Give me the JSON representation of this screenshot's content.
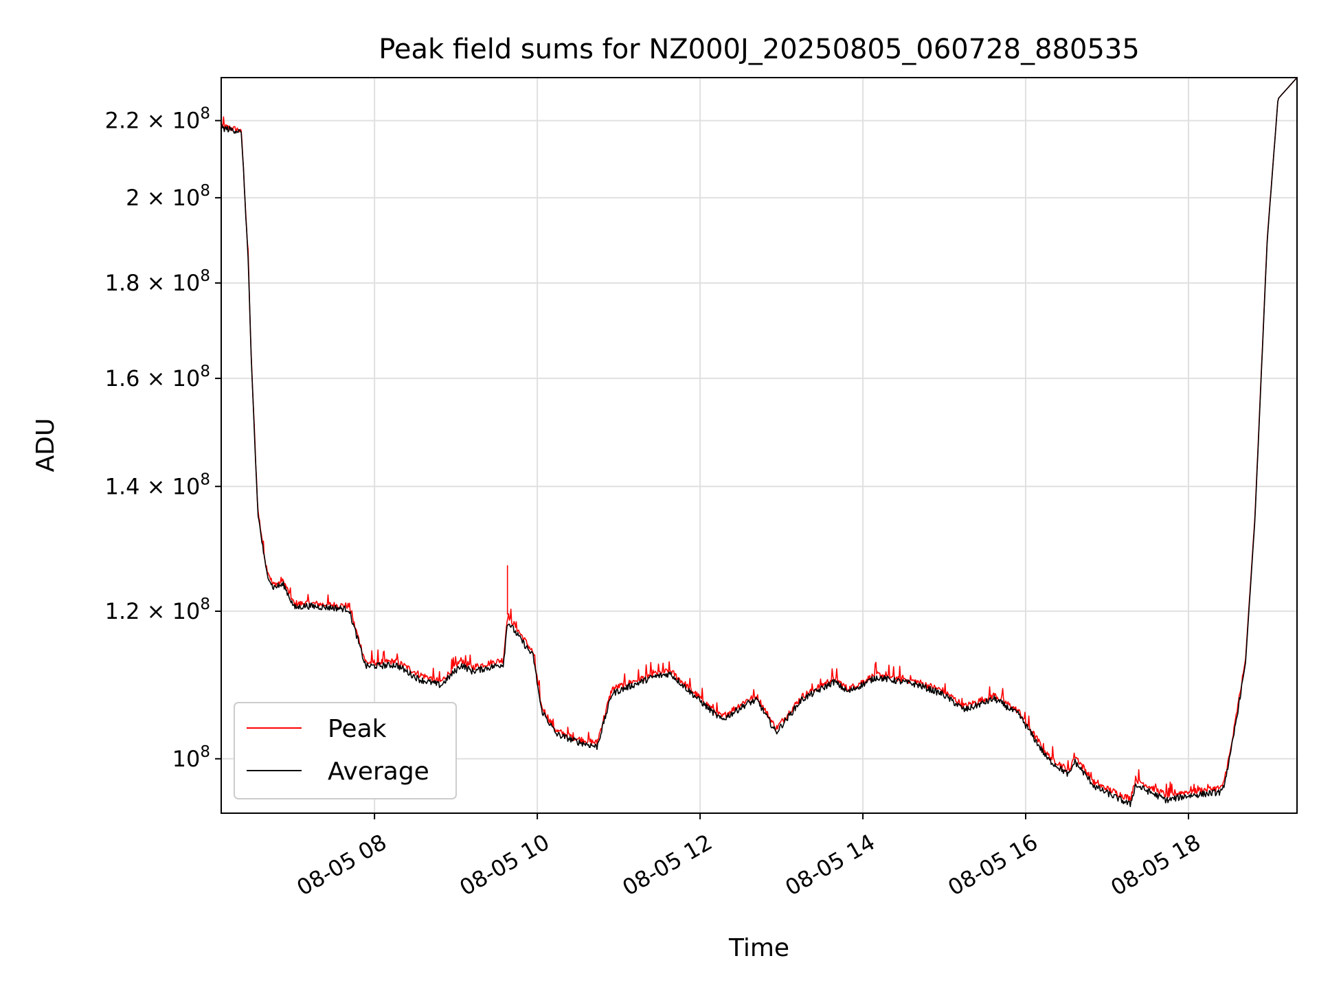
{
  "chart_data": {
    "type": "line",
    "title": "Peak field sums for NZ000J_20250805_060728_880535",
    "xlabel": "Time",
    "ylabel": "ADU",
    "yscale": "log",
    "grid": true,
    "legend_position": "lower-left",
    "xlim": [
      "2025-08-05 06:07",
      "2025-08-05 19:20"
    ],
    "ylim": [
      93500000,
      232000000
    ],
    "x_ticks": [
      "08-05 08",
      "08-05 10",
      "08-05 12",
      "08-05 14",
      "08-05 16",
      "08-05 18"
    ],
    "y_ticks": [
      {
        "value": 100000000,
        "mantissa": "",
        "exp": "8"
      },
      {
        "value": 120000000,
        "mantissa": "1.2",
        "exp": "8"
      },
      {
        "value": 140000000,
        "mantissa": "1.4",
        "exp": "8"
      },
      {
        "value": 160000000,
        "mantissa": "1.6",
        "exp": "8"
      },
      {
        "value": 180000000,
        "mantissa": "1.8",
        "exp": "8"
      },
      {
        "value": 200000000,
        "mantissa": "2",
        "exp": "8"
      },
      {
        "value": 220000000,
        "mantissa": "2.2",
        "exp": "8"
      }
    ],
    "x": [
      "2025-08-05 06:07",
      "2025-08-05 06:20",
      "2025-08-05 06:22",
      "2025-08-05 06:27",
      "2025-08-05 06:29",
      "2025-08-05 06:34",
      "2025-08-05 06:40",
      "2025-08-05 06:45",
      "2025-08-05 06:53",
      "2025-08-05 07:01",
      "2025-08-05 07:09",
      "2025-08-05 07:24",
      "2025-08-05 07:41",
      "2025-08-05 07:53",
      "2025-08-05 07:54",
      "2025-08-05 08:16",
      "2025-08-05 08:33",
      "2025-08-05 08:49",
      "2025-08-05 09:04",
      "2025-08-05 09:12",
      "2025-08-05 09:35",
      "2025-08-05 09:38",
      "2025-08-05 09:57",
      "2025-08-05 10:03",
      "2025-08-05 10:14",
      "2025-08-05 10:30",
      "2025-08-05 10:44",
      "2025-08-05 10:55",
      "2025-08-05 11:25",
      "2025-08-05 11:38",
      "2025-08-05 12:05",
      "2025-08-05 12:16",
      "2025-08-05 12:35",
      "2025-08-05 12:42",
      "2025-08-05 12:56",
      "2025-08-05 13:15",
      "2025-08-05 13:39",
      "2025-08-05 13:49",
      "2025-08-05 14:10",
      "2025-08-05 14:40",
      "2025-08-05 14:59",
      "2025-08-05 15:15",
      "2025-08-05 15:37",
      "2025-08-05 15:55",
      "2025-08-05 16:16",
      "2025-08-05 16:32",
      "2025-08-05 16:36",
      "2025-08-05 16:51",
      "2025-08-05 17:17",
      "2025-08-05 17:21",
      "2025-08-05 17:44",
      "2025-08-05 17:58",
      "2025-08-05 18:25",
      "2025-08-05 18:31",
      "2025-08-05 18:42",
      "2025-08-05 18:49",
      "2025-08-05 18:58",
      "2025-08-05 19:06",
      "2025-08-05 19:20"
    ],
    "series": [
      {
        "name": "Peak",
        "color": "#ff0000",
        "values": [
          218500000,
          217500000,
          216500000,
          185000000,
          165000000,
          136000000,
          127000000,
          124000000,
          124500000,
          121000000,
          121200000,
          121000000,
          120800000,
          113000000,
          112600000,
          112800000,
          111000000,
          110000000,
          113000000,
          112000000,
          113000000,
          119500000,
          114000000,
          106700000,
          103500000,
          102500000,
          102000000,
          109000000,
          111000000,
          111500000,
          107000000,
          105300000,
          107600000,
          108000000,
          103800000,
          108000000,
          110500000,
          109000000,
          111000000,
          110000000,
          108800000,
          106700000,
          108200000,
          106000000,
          100500000,
          98500000,
          100500000,
          97000000,
          95200000,
          97500000,
          95600000,
          96000000,
          96500000,
          101000000,
          113000000,
          135000000,
          190000000,
          226000000,
          232000000
        ]
      },
      {
        "name": "Average",
        "color": "#000000",
        "values": [
          218000000,
          217200000,
          216200000,
          184500000,
          164500000,
          135500000,
          126300000,
          123600000,
          124000000,
          120500000,
          120800000,
          120600000,
          120300000,
          112400000,
          112100000,
          112300000,
          110300000,
          109500000,
          112300000,
          111400000,
          112400000,
          118500000,
          113500000,
          106200000,
          103100000,
          102100000,
          101500000,
          108400000,
          110600000,
          111100000,
          106600000,
          104900000,
          107100000,
          107500000,
          103300000,
          107600000,
          110000000,
          108600000,
          110600000,
          109600000,
          108300000,
          106200000,
          107700000,
          105600000,
          100000000,
          98000000,
          99700000,
          96600000,
          94500000,
          96800000,
          95000000,
          95500000,
          96000000,
          100500000,
          112500000,
          134500000,
          189500000,
          226000000,
          232000000
        ]
      }
    ]
  }
}
